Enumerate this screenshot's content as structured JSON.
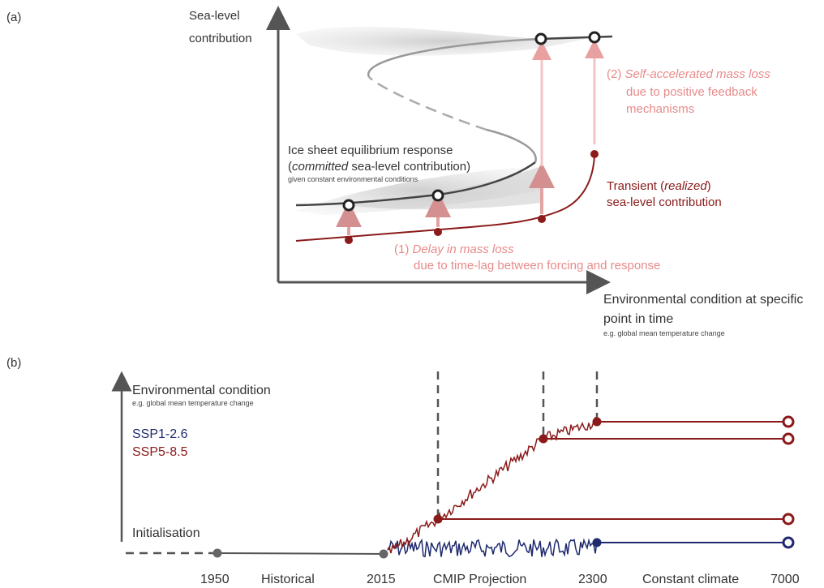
{
  "panel_a": {
    "label": "(a)",
    "y_axis": [
      "Sea-level",
      "contribution"
    ],
    "x_axis": [
      "Environmental condition at specific",
      "point in time"
    ],
    "x_axis_note": "e.g. global mean temperature change",
    "equilibrium": {
      "line1": "Ice sheet equilibrium response",
      "line2_open": "(",
      "line2_italic": "committed",
      "line2_rest": " sea-level contribution)",
      "note": "given constant environmental conditions"
    },
    "transient": {
      "line1_plain": "Transient (",
      "line1_italic": "realized",
      "line1_close": ")",
      "line2": "sea-level contribution"
    },
    "delay": {
      "prefix": "(1) ",
      "italic": "Delay in mass loss",
      "line2": "due to time-lag between forcing and response"
    },
    "self_acc": {
      "prefix": "(2) ",
      "italic": "Self-accelerated mass loss",
      "line2": "due to positive feedback",
      "line3": "mechanisms"
    }
  },
  "panel_b": {
    "label": "(b)",
    "y_axis": "Environmental condition",
    "y_axis_note": "e.g. global mean temperature change",
    "init_label": "Initialisation",
    "legend": [
      {
        "name": "SSP1-2.6",
        "color": "#1f2a6e"
      },
      {
        "name": "SSP5-8.5",
        "color": "#8b1a1a"
      }
    ],
    "x_labels": [
      "1950",
      "Historical",
      "2015",
      "CMIP Projection",
      "2300",
      "Constant climate",
      "7000"
    ]
  },
  "colors": {
    "dark_red": "#8b1a1a",
    "navy": "#1f2a6e",
    "pink": "#e88a8a",
    "grey": "#555555"
  }
}
